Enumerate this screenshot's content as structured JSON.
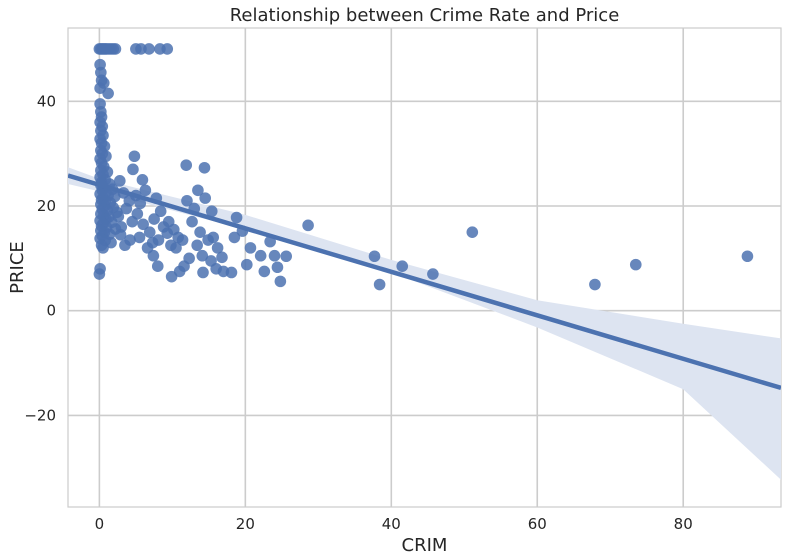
{
  "chart_data": {
    "type": "scatter",
    "title": "Relationship between Crime Rate and Price",
    "xlabel": "CRIM",
    "ylabel": "PRICE",
    "xlim": [
      -4.3,
      93.4
    ],
    "ylim": [
      -37.5,
      54
    ],
    "xticks": [
      0,
      20,
      40,
      60,
      80
    ],
    "yticks": [
      -20,
      0,
      20,
      40
    ],
    "xtick_labels": [
      "0",
      "20",
      "40",
      "60",
      "80"
    ],
    "ytick_labels": [
      "−20",
      "0",
      "20",
      "40"
    ],
    "grid": true,
    "colors": {
      "points": "#4c72b0",
      "line": "#4c72b0",
      "band": "#dde4f1",
      "grid": "#cccccc"
    },
    "regression": {
      "slope": -0.4152,
      "intercept": 24.03
    },
    "confidence_band": {
      "x": [
        -4.3,
        0,
        20,
        40,
        60,
        80,
        93.4
      ],
      "lower": [
        24.2,
        22.8,
        15.5,
        7.3,
        -3.2,
        -15.0,
        -32.3
      ],
      "upper": [
        27.4,
        25.2,
        18.3,
        9.7,
        2.0,
        -2.5,
        -5.3
      ]
    },
    "series": [
      {
        "name": "observations",
        "points": [
          [
            0.0,
            50
          ],
          [
            0.2,
            50
          ],
          [
            0.4,
            50
          ],
          [
            0.6,
            50
          ],
          [
            0.8,
            50
          ],
          [
            1.0,
            50
          ],
          [
            1.3,
            50
          ],
          [
            1.6,
            50
          ],
          [
            1.9,
            50
          ],
          [
            2.2,
            50
          ],
          [
            5.0,
            50
          ],
          [
            5.7,
            50
          ],
          [
            6.8,
            50
          ],
          [
            8.3,
            50
          ],
          [
            9.3,
            50
          ],
          [
            0.1,
            47.0
          ],
          [
            0.2,
            45.5
          ],
          [
            0.3,
            44.0
          ],
          [
            0.1,
            42.5
          ],
          [
            0.6,
            43.5
          ],
          [
            1.2,
            41.5
          ],
          [
            0.1,
            39.5
          ],
          [
            0.2,
            38.0
          ],
          [
            0.3,
            37.0
          ],
          [
            0.1,
            36.0
          ],
          [
            0.4,
            35.2
          ],
          [
            0.2,
            34.4
          ],
          [
            0.5,
            33.5
          ],
          [
            0.1,
            32.8
          ],
          [
            0.3,
            32.0
          ],
          [
            0.7,
            31.4
          ],
          [
            0.2,
            30.6
          ],
          [
            0.4,
            30.0
          ],
          [
            0.9,
            29.5
          ],
          [
            0.1,
            29.0
          ],
          [
            0.3,
            28.2
          ],
          [
            0.6,
            27.5
          ],
          [
            0.2,
            26.8
          ],
          [
            1.1,
            26.5
          ],
          [
            0.5,
            26.0
          ],
          [
            0.1,
            25.5
          ],
          [
            0.8,
            25.0
          ],
          [
            0.3,
            24.5
          ],
          [
            1.4,
            24.2
          ],
          [
            0.2,
            24.0
          ],
          [
            0.6,
            23.5
          ],
          [
            1.8,
            23.2
          ],
          [
            0.4,
            23.0
          ],
          [
            0.9,
            22.6
          ],
          [
            0.1,
            22.3
          ],
          [
            1.2,
            22.0
          ],
          [
            2.1,
            21.8
          ],
          [
            0.5,
            21.5
          ],
          [
            0.3,
            21.2
          ],
          [
            0.8,
            20.9
          ],
          [
            1.5,
            20.6
          ],
          [
            0.2,
            20.3
          ],
          [
            0.7,
            20.0
          ],
          [
            1.9,
            19.7
          ],
          [
            0.4,
            19.4
          ],
          [
            1.1,
            19.1
          ],
          [
            2.4,
            18.8
          ],
          [
            0.2,
            18.5
          ],
          [
            0.6,
            18.2
          ],
          [
            1.3,
            17.9
          ],
          [
            0.9,
            17.5
          ],
          [
            0.1,
            17.2
          ],
          [
            1.7,
            16.9
          ],
          [
            0.5,
            16.6
          ],
          [
            0.3,
            16.2
          ],
          [
            1.0,
            15.9
          ],
          [
            2.2,
            15.6
          ],
          [
            0.2,
            15.3
          ],
          [
            0.7,
            15.0
          ],
          [
            1.4,
            14.6
          ],
          [
            0.4,
            14.3
          ],
          [
            0.1,
            13.8
          ],
          [
            0.8,
            13.4
          ],
          [
            1.6,
            13.0
          ],
          [
            0.3,
            12.5
          ],
          [
            0.5,
            12.0
          ],
          [
            0.0,
            7.0
          ],
          [
            0.1,
            8.0
          ],
          [
            2.8,
            24.8
          ],
          [
            3.3,
            22.5
          ],
          [
            4.1,
            21.0
          ],
          [
            3.7,
            19.5
          ],
          [
            2.6,
            18.0
          ],
          [
            4.5,
            17.0
          ],
          [
            3.0,
            16.0
          ],
          [
            2.9,
            14.5
          ],
          [
            4.2,
            13.5
          ],
          [
            3.5,
            12.5
          ],
          [
            5.0,
            22.0
          ],
          [
            5.6,
            20.5
          ],
          [
            4.8,
            29.5
          ],
          [
            4.6,
            27.0
          ],
          [
            5.9,
            25.0
          ],
          [
            6.3,
            23.0
          ],
          [
            5.2,
            18.5
          ],
          [
            6.0,
            16.5
          ],
          [
            6.9,
            15.0
          ],
          [
            5.5,
            14.0
          ],
          [
            7.3,
            13.0
          ],
          [
            6.6,
            12.0
          ],
          [
            7.8,
            21.5
          ],
          [
            8.4,
            19.0
          ],
          [
            7.5,
            17.5
          ],
          [
            8.8,
            16.0
          ],
          [
            9.3,
            14.8
          ],
          [
            8.1,
            13.5
          ],
          [
            9.8,
            12.5
          ],
          [
            7.4,
            10.5
          ],
          [
            8.0,
            8.5
          ],
          [
            9.5,
            17.0
          ],
          [
            10.2,
            15.5
          ],
          [
            10.8,
            14.0
          ],
          [
            11.4,
            13.5
          ],
          [
            10.5,
            12.0
          ],
          [
            9.9,
            6.5
          ],
          [
            11.0,
            7.5
          ],
          [
            11.6,
            8.5
          ],
          [
            12.3,
            10.0
          ],
          [
            11.9,
            27.8
          ],
          [
            14.4,
            27.3
          ],
          [
            12.0,
            21.0
          ],
          [
            13.5,
            23.0
          ],
          [
            14.5,
            21.5
          ],
          [
            15.4,
            19.0
          ],
          [
            13.0,
            19.5
          ],
          [
            12.7,
            17.0
          ],
          [
            13.8,
            15.0
          ],
          [
            14.9,
            13.5
          ],
          [
            15.6,
            14.0
          ],
          [
            16.2,
            12.0
          ],
          [
            13.4,
            12.5
          ],
          [
            14.1,
            10.5
          ],
          [
            15.3,
            9.5
          ],
          [
            16.0,
            8.0
          ],
          [
            14.2,
            7.3
          ],
          [
            17.0,
            7.5
          ],
          [
            18.1,
            7.3
          ],
          [
            16.8,
            10.2
          ],
          [
            18.5,
            14.0
          ],
          [
            18.8,
            17.8
          ],
          [
            19.6,
            15.2
          ],
          [
            20.7,
            12.0
          ],
          [
            20.2,
            8.8
          ],
          [
            22.1,
            10.5
          ],
          [
            22.6,
            7.5
          ],
          [
            23.4,
            13.2
          ],
          [
            24.0,
            10.5
          ],
          [
            24.4,
            8.3
          ],
          [
            24.8,
            5.6
          ],
          [
            25.6,
            10.4
          ],
          [
            28.6,
            16.3
          ],
          [
            37.7,
            10.4
          ],
          [
            38.4,
            5.0
          ],
          [
            41.5,
            8.5
          ],
          [
            45.7,
            7.0
          ],
          [
            51.1,
            15.0
          ],
          [
            67.9,
            5.0
          ],
          [
            73.5,
            8.8
          ],
          [
            88.8,
            10.4
          ]
        ]
      }
    ]
  }
}
